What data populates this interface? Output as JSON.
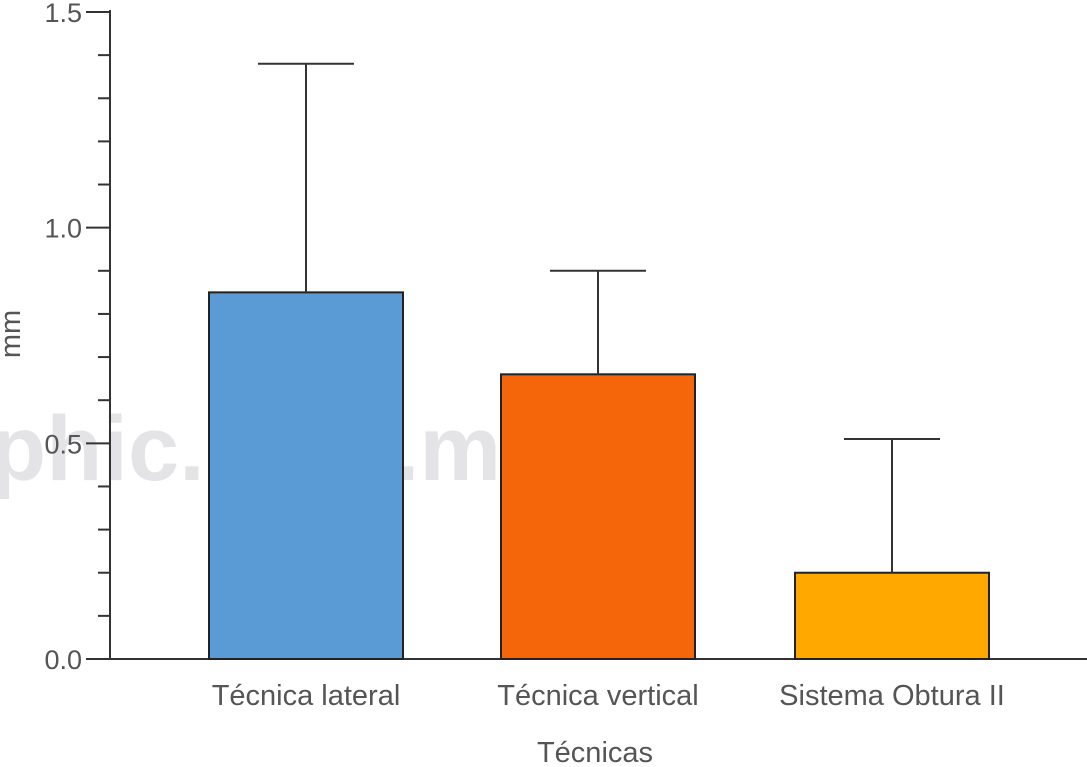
{
  "chart_data": {
    "type": "bar",
    "categories": [
      "Técnica lateral",
      "Técnica vertical",
      "Sistema Obtura II"
    ],
    "values": [
      0.85,
      0.66,
      0.2
    ],
    "error_upper": [
      1.38,
      0.9,
      0.51
    ],
    "colors": [
      "#5b9bd5",
      "#f5650a",
      "#ffa800"
    ],
    "xlabel": "Técnicas",
    "ylabel": "mm",
    "ylim": [
      0,
      1.5
    ],
    "yticks": [
      "0.0",
      "0.5",
      "1.0",
      "1.5"
    ],
    "minor_tick_step": 0.1,
    "grid": false,
    "watermark": "phic.com.mx"
  }
}
